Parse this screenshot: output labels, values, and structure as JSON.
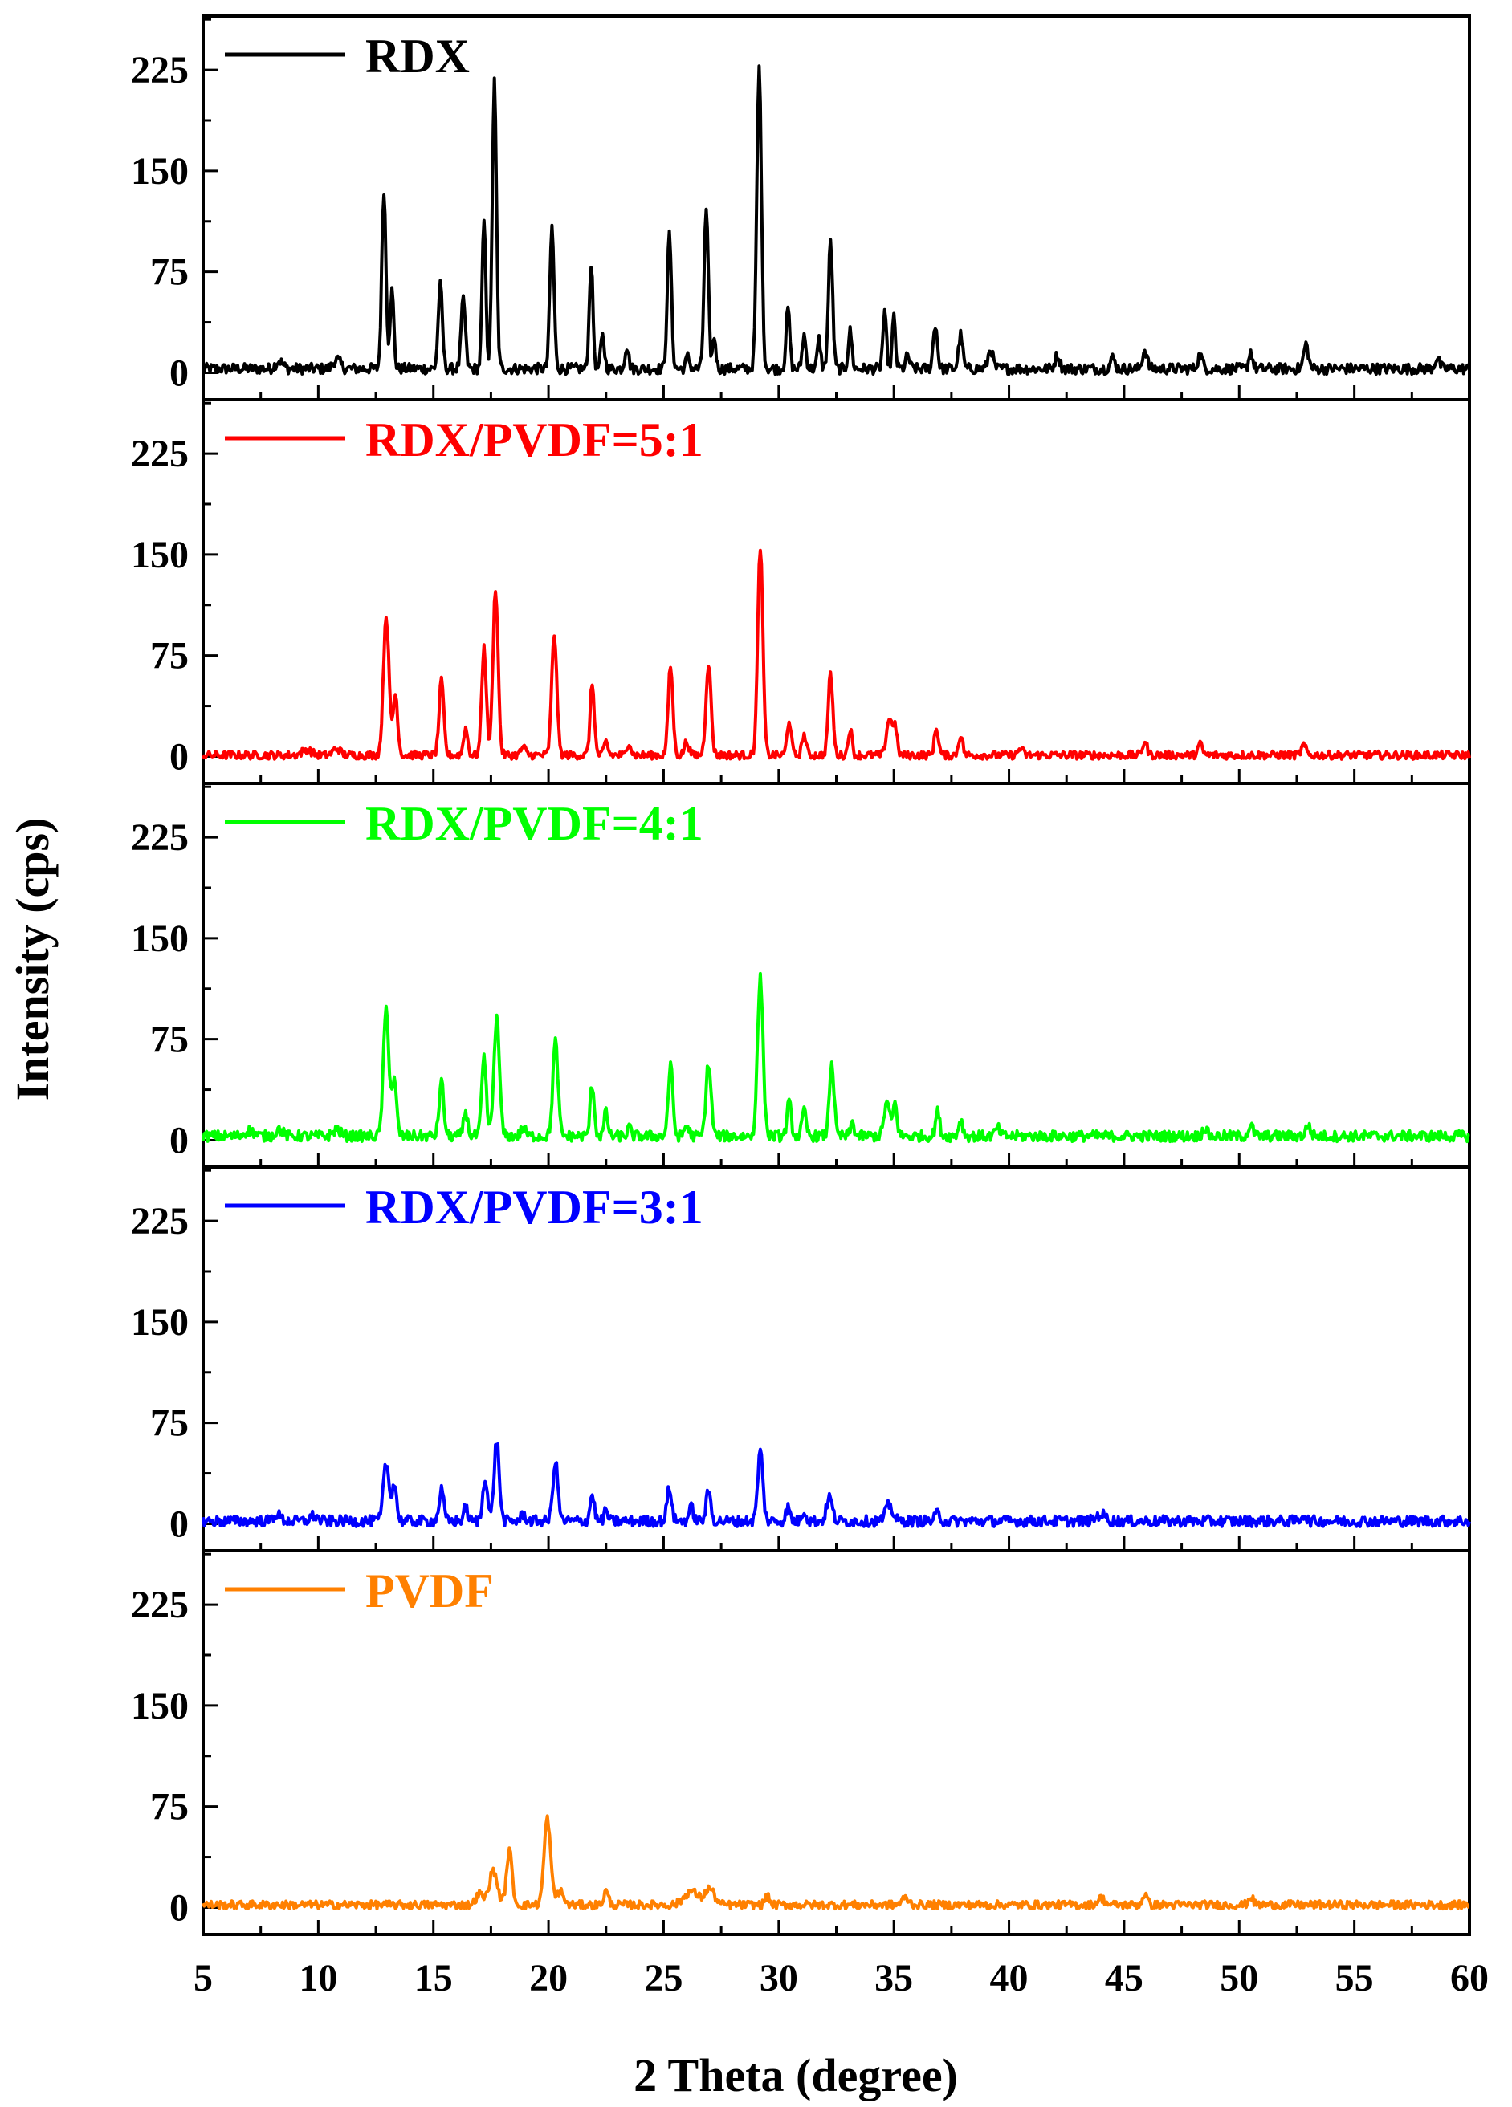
{
  "chart_data": {
    "type": "line",
    "layout": "stacked-panels",
    "xlabel": "2 Theta (degree)",
    "ylabel": "Intensity (cps)",
    "xlim": [
      5,
      60
    ],
    "ylim": [
      -20,
      265
    ],
    "x_ticks": [
      5,
      10,
      15,
      20,
      25,
      30,
      35,
      40,
      45,
      50,
      55,
      60
    ],
    "y_ticks": [
      0,
      75,
      150,
      225
    ],
    "series": [
      {
        "name": "RDX",
        "color": "#000000",
        "baseline": 3,
        "noise": 4,
        "peaks": [
          [
            8.3,
            6,
            0.15
          ],
          [
            10.8,
            7,
            0.15
          ],
          [
            12.85,
            133,
            0.09
          ],
          [
            13.2,
            58,
            0.08
          ],
          [
            15.3,
            62,
            0.09
          ],
          [
            16.3,
            52,
            0.09
          ],
          [
            17.2,
            110,
            0.08
          ],
          [
            17.65,
            213,
            0.09
          ],
          [
            20.15,
            105,
            0.09
          ],
          [
            21.85,
            78,
            0.08
          ],
          [
            22.35,
            24,
            0.08
          ],
          [
            23.4,
            17,
            0.08
          ],
          [
            25.25,
            100,
            0.09
          ],
          [
            26.05,
            9,
            0.08
          ],
          [
            26.85,
            118,
            0.09
          ],
          [
            27.2,
            24,
            0.07
          ],
          [
            29.15,
            223,
            0.1
          ],
          [
            30.4,
            45,
            0.08
          ],
          [
            31.1,
            25,
            0.08
          ],
          [
            31.75,
            22,
            0.07
          ],
          [
            32.25,
            95,
            0.09
          ],
          [
            33.1,
            28,
            0.08
          ],
          [
            34.6,
            40,
            0.08
          ],
          [
            35.0,
            38,
            0.07
          ],
          [
            35.6,
            10,
            0.08
          ],
          [
            36.8,
            33,
            0.09
          ],
          [
            37.9,
            25,
            0.09
          ],
          [
            39.2,
            15,
            0.1
          ],
          [
            42.1,
            10,
            0.1
          ],
          [
            44.5,
            8,
            0.1
          ],
          [
            45.9,
            14,
            0.1
          ],
          [
            48.3,
            10,
            0.1
          ],
          [
            50.5,
            13,
            0.08
          ],
          [
            52.9,
            18,
            0.1
          ],
          [
            58.6,
            8,
            0.1
          ]
        ]
      },
      {
        "name": "RDX/PVDF=5:1",
        "color": "#ff0000",
        "baseline": 1,
        "noise": 3,
        "peaks": [
          [
            9.5,
            4,
            0.2
          ],
          [
            10.8,
            5,
            0.15
          ],
          [
            12.95,
            104,
            0.12
          ],
          [
            13.35,
            45,
            0.1
          ],
          [
            15.35,
            55,
            0.1
          ],
          [
            16.4,
            20,
            0.09
          ],
          [
            17.2,
            80,
            0.1
          ],
          [
            17.7,
            124,
            0.11
          ],
          [
            18.9,
            6,
            0.1
          ],
          [
            20.25,
            90,
            0.11
          ],
          [
            21.9,
            53,
            0.09
          ],
          [
            22.5,
            10,
            0.08
          ],
          [
            23.5,
            10,
            0.08
          ],
          [
            25.3,
            66,
            0.1
          ],
          [
            26.0,
            10,
            0.1
          ],
          [
            26.95,
            68,
            0.11
          ],
          [
            29.2,
            155,
            0.11
          ],
          [
            30.45,
            26,
            0.09
          ],
          [
            31.1,
            15,
            0.09
          ],
          [
            32.25,
            60,
            0.1
          ],
          [
            33.1,
            20,
            0.08
          ],
          [
            34.8,
            27,
            0.12
          ],
          [
            35.05,
            20,
            0.09
          ],
          [
            36.85,
            20,
            0.09
          ],
          [
            37.9,
            15,
            0.09
          ],
          [
            40.5,
            5,
            0.1
          ],
          [
            45.9,
            10,
            0.1
          ],
          [
            48.3,
            8,
            0.1
          ],
          [
            52.8,
            7,
            0.1
          ]
        ]
      },
      {
        "name": "RDX/PVDF=4:1",
        "color": "#00ff00",
        "baseline": 3,
        "noise": 4,
        "peaks": [
          [
            7.0,
            4,
            0.2
          ],
          [
            8.3,
            5,
            0.15
          ],
          [
            10.8,
            5,
            0.15
          ],
          [
            12.95,
            94,
            0.12
          ],
          [
            13.3,
            40,
            0.1
          ],
          [
            15.35,
            40,
            0.1
          ],
          [
            16.4,
            18,
            0.09
          ],
          [
            17.2,
            57,
            0.1
          ],
          [
            17.75,
            87,
            0.12
          ],
          [
            18.9,
            6,
            0.1
          ],
          [
            20.3,
            70,
            0.11
          ],
          [
            21.9,
            38,
            0.09
          ],
          [
            22.5,
            18,
            0.08
          ],
          [
            23.5,
            6,
            0.08
          ],
          [
            25.3,
            52,
            0.1
          ],
          [
            26.0,
            8,
            0.1
          ],
          [
            26.95,
            54,
            0.11
          ],
          [
            29.2,
            117,
            0.12
          ],
          [
            30.45,
            25,
            0.09
          ],
          [
            31.1,
            18,
            0.09
          ],
          [
            32.3,
            55,
            0.1
          ],
          [
            33.2,
            10,
            0.08
          ],
          [
            34.7,
            25,
            0.12
          ],
          [
            35.05,
            24,
            0.09
          ],
          [
            36.9,
            18,
            0.09
          ],
          [
            37.9,
            12,
            0.09
          ],
          [
            39.5,
            6,
            0.1
          ],
          [
            48.5,
            6,
            0.1
          ],
          [
            50.5,
            8,
            0.1
          ],
          [
            53.0,
            8,
            0.1
          ]
        ]
      },
      {
        "name": "RDX/PVDF=3:1",
        "color": "#0000ff",
        "baseline": 2,
        "noise": 4,
        "peaks": [
          [
            8.2,
            5,
            0.15
          ],
          [
            9.8,
            4,
            0.15
          ],
          [
            12.95,
            43,
            0.12
          ],
          [
            13.3,
            28,
            0.1
          ],
          [
            15.35,
            23,
            0.1
          ],
          [
            16.4,
            10,
            0.09
          ],
          [
            17.25,
            33,
            0.1
          ],
          [
            17.75,
            60,
            0.11
          ],
          [
            18.9,
            5,
            0.1
          ],
          [
            20.3,
            44,
            0.11
          ],
          [
            21.9,
            20,
            0.09
          ],
          [
            22.5,
            8,
            0.08
          ],
          [
            25.25,
            25,
            0.1
          ],
          [
            26.2,
            10,
            0.1
          ],
          [
            26.95,
            22,
            0.1
          ],
          [
            29.2,
            52,
            0.11
          ],
          [
            30.4,
            10,
            0.09
          ],
          [
            31.1,
            8,
            0.09
          ],
          [
            32.2,
            18,
            0.12
          ],
          [
            34.8,
            12,
            0.15
          ],
          [
            36.9,
            6,
            0.1
          ],
          [
            44.0,
            5,
            0.2
          ],
          [
            52.8,
            5,
            0.1
          ]
        ]
      },
      {
        "name": "PVDF",
        "color": "#ff8000",
        "baseline": 2,
        "noise": 3,
        "peaks": [
          [
            17.0,
            8,
            0.15
          ],
          [
            17.6,
            25,
            0.18
          ],
          [
            18.3,
            40,
            0.12
          ],
          [
            19.95,
            64,
            0.14
          ],
          [
            20.5,
            10,
            0.15
          ],
          [
            22.5,
            10,
            0.1
          ],
          [
            26.2,
            10,
            0.3
          ],
          [
            27.0,
            12,
            0.2
          ],
          [
            29.5,
            6,
            0.1
          ],
          [
            35.5,
            5,
            0.15
          ],
          [
            44.0,
            5,
            0.15
          ],
          [
            45.9,
            8,
            0.1
          ],
          [
            50.5,
            6,
            0.1
          ]
        ]
      }
    ]
  }
}
